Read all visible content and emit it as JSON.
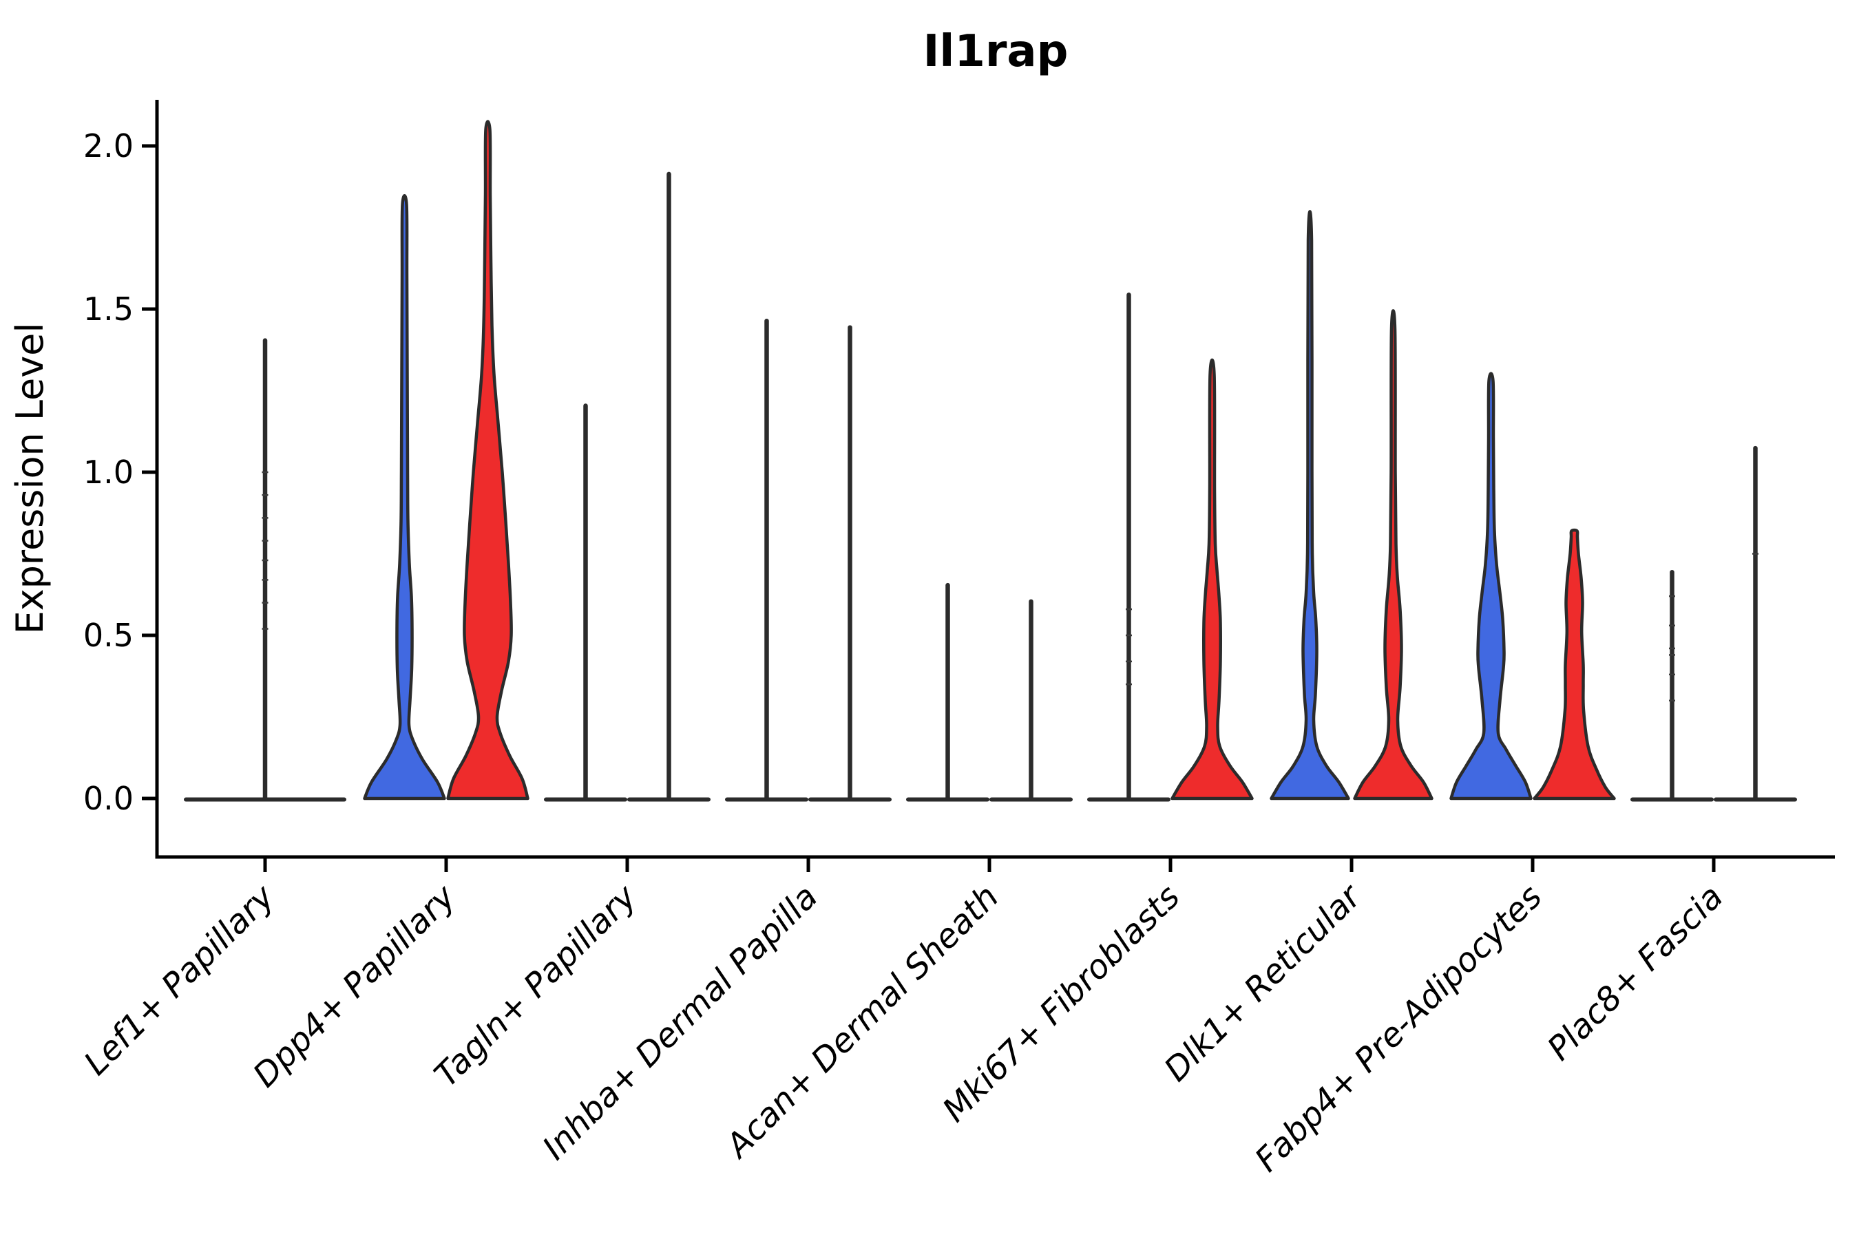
{
  "chart_data": {
    "type": "violin",
    "title": "Il1rap",
    "ylabel": "Expression Level",
    "xlabel": "",
    "ylim": [
      0,
      2.14
    ],
    "yticks": [
      0,
      0.5,
      1.0,
      1.5,
      2.0
    ],
    "ytick_labels": [
      "0.0",
      "0.5",
      "1.0",
      "1.5",
      "2.0"
    ],
    "grid": "off",
    "legend": "none",
    "categories": [
      "Lef1+ Papillary",
      "Dpp4+ Papillary",
      "Tagln+ Papillary",
      "Inhba+ Dermal Papilla",
      "Acan+ Dermal Sheath",
      "Mki67+ Fibroblasts",
      "Dlk1+ Reticular",
      "Fabp4+ Pre-Adipocytes",
      "Plac8+ Fascia"
    ],
    "colors": {
      "blue": "#4169E1",
      "red": "#EE2C2C",
      "outline": "#2B2B2B",
      "axis": "#000000",
      "background": "#FFFFFF"
    },
    "violins": [
      {
        "category": 0,
        "side": "center",
        "fill": "none",
        "shape": "spike",
        "max": 1.41,
        "base_halfwidth": 118,
        "points": [
          0.52,
          0.6,
          0.67,
          0.73,
          0.79,
          0.86,
          0.93,
          1.0
        ]
      },
      {
        "category": 1,
        "side": "left",
        "fill": "blue",
        "shape": "body",
        "max": 1.82,
        "profile": [
          [
            0,
            58
          ],
          [
            0.05,
            48
          ],
          [
            0.12,
            26
          ],
          [
            0.18,
            12
          ],
          [
            0.225,
            6.5
          ],
          [
            0.3,
            8
          ],
          [
            0.4,
            10.5
          ],
          [
            0.52,
            11
          ],
          [
            0.62,
            10
          ],
          [
            0.72,
            7
          ],
          [
            0.85,
            5
          ],
          [
            1.0,
            4.5
          ],
          [
            1.3,
            4
          ],
          [
            1.6,
            3.5
          ],
          [
            1.82,
            3
          ]
        ]
      },
      {
        "category": 1,
        "side": "right",
        "fill": "red",
        "shape": "body",
        "max": 2.05,
        "profile": [
          [
            0,
            58
          ],
          [
            0.06,
            50
          ],
          [
            0.13,
            32
          ],
          [
            0.2,
            18
          ],
          [
            0.25,
            13.5
          ],
          [
            0.33,
            20
          ],
          [
            0.42,
            30
          ],
          [
            0.5,
            34
          ],
          [
            0.6,
            33
          ],
          [
            0.72,
            30
          ],
          [
            0.85,
            26
          ],
          [
            1.0,
            21
          ],
          [
            1.15,
            15
          ],
          [
            1.3,
            9
          ],
          [
            1.45,
            6
          ],
          [
            1.65,
            4.5
          ],
          [
            1.85,
            3.5
          ],
          [
            2.05,
            3
          ]
        ]
      },
      {
        "category": 2,
        "side": "left",
        "fill": "none",
        "shape": "spike",
        "max": 1.21
      },
      {
        "category": 2,
        "side": "right",
        "fill": "none",
        "shape": "spike",
        "max": 1.92
      },
      {
        "category": 3,
        "side": "left",
        "fill": "none",
        "shape": "spike",
        "max": 1.47
      },
      {
        "category": 3,
        "side": "right",
        "fill": "none",
        "shape": "spike",
        "max": 1.45
      },
      {
        "category": 4,
        "side": "left",
        "fill": "none",
        "shape": "spike",
        "max": 0.66
      },
      {
        "category": 4,
        "side": "right",
        "fill": "none",
        "shape": "spike",
        "max": 0.61
      },
      {
        "category": 5,
        "side": "left",
        "fill": "none",
        "shape": "spike",
        "max": 1.55,
        "points": [
          0.35,
          0.42,
          0.5,
          0.58
        ]
      },
      {
        "category": 5,
        "side": "right",
        "fill": "red",
        "shape": "body",
        "max": 1.3,
        "profile": [
          [
            0,
            58
          ],
          [
            0.05,
            44
          ],
          [
            0.1,
            26
          ],
          [
            0.16,
            11
          ],
          [
            0.22,
            8
          ],
          [
            0.3,
            10
          ],
          [
            0.42,
            12
          ],
          [
            0.54,
            12
          ],
          [
            0.62,
            10
          ],
          [
            0.7,
            7
          ],
          [
            0.78,
            4.5
          ],
          [
            0.95,
            3.5
          ],
          [
            1.3,
            3
          ]
        ]
      },
      {
        "category": 6,
        "side": "left",
        "fill": "blue",
        "shape": "body",
        "max": 1.71,
        "profile": [
          [
            0,
            56
          ],
          [
            0.05,
            42
          ],
          [
            0.1,
            24
          ],
          [
            0.16,
            10
          ],
          [
            0.24,
            5.5
          ],
          [
            0.32,
            8
          ],
          [
            0.45,
            10
          ],
          [
            0.55,
            8.5
          ],
          [
            0.63,
            5.5
          ],
          [
            0.75,
            3.5
          ],
          [
            1.0,
            3
          ],
          [
            1.71,
            2.5
          ]
        ]
      },
      {
        "category": 6,
        "side": "right",
        "fill": "red",
        "shape": "body",
        "max": 1.44,
        "profile": [
          [
            0,
            56
          ],
          [
            0.05,
            44
          ],
          [
            0.1,
            26
          ],
          [
            0.16,
            11
          ],
          [
            0.24,
            6.5
          ],
          [
            0.34,
            10
          ],
          [
            0.46,
            12
          ],
          [
            0.58,
            10
          ],
          [
            0.68,
            6
          ],
          [
            0.78,
            4
          ],
          [
            1.0,
            3
          ],
          [
            1.44,
            2.5
          ]
        ]
      },
      {
        "category": 7,
        "side": "left",
        "fill": "blue",
        "shape": "body",
        "max": 1.28,
        "profile": [
          [
            0,
            58
          ],
          [
            0.05,
            50
          ],
          [
            0.1,
            36
          ],
          [
            0.15,
            22
          ],
          [
            0.2,
            10.5
          ],
          [
            0.3,
            13
          ],
          [
            0.4,
            18
          ],
          [
            0.45,
            19
          ],
          [
            0.55,
            17
          ],
          [
            0.63,
            13
          ],
          [
            0.72,
            8
          ],
          [
            0.82,
            5
          ],
          [
            0.95,
            4
          ],
          [
            1.1,
            3.5
          ],
          [
            1.28,
            3
          ]
        ]
      },
      {
        "category": 7,
        "side": "right",
        "fill": "red",
        "shape": "body",
        "max": 0.82,
        "profile": [
          [
            0,
            58
          ],
          [
            0.035,
            45
          ],
          [
            0.09,
            32
          ],
          [
            0.16,
            20
          ],
          [
            0.27,
            13.5
          ],
          [
            0.35,
            13
          ],
          [
            0.41,
            13
          ],
          [
            0.51,
            10.7
          ],
          [
            0.6,
            12
          ],
          [
            0.675,
            10
          ],
          [
            0.75,
            6
          ],
          [
            0.8,
            4.5
          ],
          [
            0.82,
            4
          ]
        ]
      },
      {
        "category": 8,
        "side": "left",
        "fill": "none",
        "shape": "spike",
        "max": 0.7,
        "points": [
          0.3,
          0.38,
          0.44,
          0.46,
          0.53,
          0.62
        ]
      },
      {
        "category": 8,
        "side": "right",
        "fill": "none",
        "shape": "spike",
        "max": 1.08,
        "points": [
          0.75
        ]
      }
    ]
  }
}
